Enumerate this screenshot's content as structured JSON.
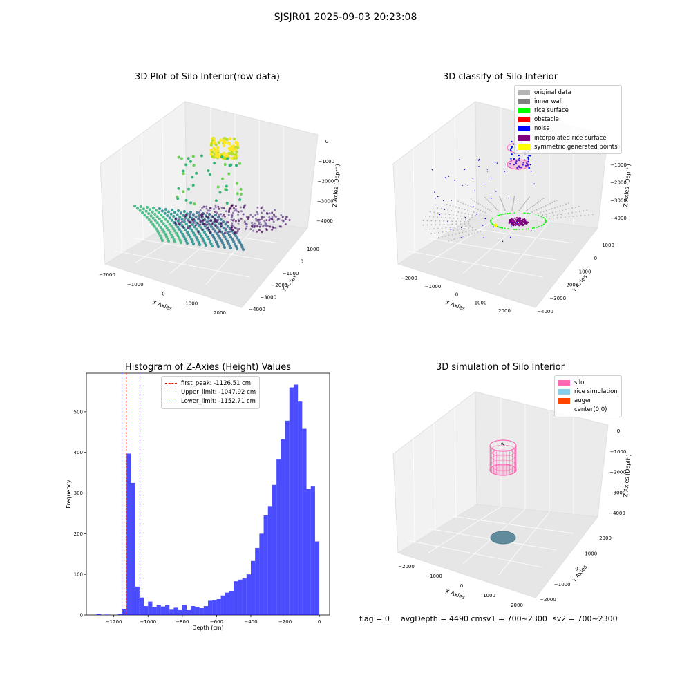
{
  "suptitle": "SJSJR01 2025-09-03 20:23:08",
  "panels": {
    "raw": {
      "title": "3D Plot of Silo Interior(row data)",
      "xlabel": "X Axies",
      "ylabel": "Y Axies",
      "zlabel": "Z Axies (Depth)",
      "xticks": [
        "−2000",
        "−1000",
        "0",
        "1000",
        "2000"
      ],
      "yticks": [
        "1000",
        "0",
        "−1000",
        "−2000",
        "−3000",
        "−4000"
      ],
      "zticks": [
        "0",
        "−1000",
        "−2000",
        "−3000",
        "−4000"
      ]
    },
    "classify": {
      "title": "3D classify of Silo Interior",
      "xlabel": "X Axies",
      "ylabel": "Y Axies",
      "zlabel": "Z Axies (Depth)",
      "xticks": [
        "−2000",
        "−1000",
        "0",
        "1000",
        "2000"
      ],
      "yticks": [
        "1000",
        "0",
        "−1000",
        "−2000",
        "−3000",
        "−4000"
      ],
      "zticks": [
        "0",
        "−1000",
        "−2000",
        "−3000",
        "−4000"
      ],
      "legend": [
        {
          "label": "original data",
          "color": "#b4b4b4"
        },
        {
          "label": "inner wall",
          "color": "#808080"
        },
        {
          "label": "rice surface",
          "color": "#00ff00"
        },
        {
          "label": "obstacle",
          "color": "#ff0000"
        },
        {
          "label": "noise",
          "color": "#0000ff"
        },
        {
          "label": "interpolated rice surface",
          "color": "#800080"
        },
        {
          "label": "symmetric generated points",
          "color": "#ffff00"
        }
      ]
    },
    "simulation": {
      "title": "3D simulation of Silo Interior",
      "xlabel": "X Axies",
      "ylabel": "Y Axies",
      "zlabel": "Z Axies (Depth)",
      "xticks": [
        "−2000",
        "−1000",
        "0",
        "1000",
        "2000"
      ],
      "yticks": [
        "2000",
        "1000",
        "0",
        "−1000",
        "−2000"
      ],
      "zticks": [
        "0",
        "−1000",
        "−2000",
        "−3000",
        "−4000"
      ],
      "legend": [
        {
          "label": "silo",
          "color": "#ff69b4"
        },
        {
          "label": "rice simulation",
          "color": "#87ceeb"
        },
        {
          "label": "auger",
          "color": "#ff4500"
        },
        {
          "label": "center(0,0)",
          "color": "#ffffff"
        }
      ]
    }
  },
  "chart_data": {
    "type": "bar",
    "title": "Histogram of Z-Axies (Height) Values",
    "xlabel": "Depth (cm)",
    "ylabel": "Frequency",
    "xlim": [
      -1360,
      60
    ],
    "ylim": [
      0,
      595
    ],
    "xticks": [
      -1200,
      -1000,
      -800,
      -600,
      -400,
      -200,
      0
    ],
    "xtick_labels": [
      "−1200",
      "−1000",
      "−800",
      "−600",
      "−400",
      "−200",
      "0"
    ],
    "yticks": [
      0,
      100,
      200,
      300,
      400,
      500
    ],
    "bar_color": "#0000ff",
    "bin_width": 25,
    "bins": [
      {
        "x": -1300,
        "v": 2
      },
      {
        "x": -1275,
        "v": 0
      },
      {
        "x": -1250,
        "v": 1
      },
      {
        "x": -1225,
        "v": 0
      },
      {
        "x": -1200,
        "v": 0
      },
      {
        "x": -1175,
        "v": 2
      },
      {
        "x": -1150,
        "v": 15
      },
      {
        "x": -1125,
        "v": 397
      },
      {
        "x": -1100,
        "v": 325
      },
      {
        "x": -1075,
        "v": 70
      },
      {
        "x": -1050,
        "v": 43
      },
      {
        "x": -1025,
        "v": 22
      },
      {
        "x": -1000,
        "v": 33
      },
      {
        "x": -975,
        "v": 20
      },
      {
        "x": -950,
        "v": 25
      },
      {
        "x": -925,
        "v": 21
      },
      {
        "x": -900,
        "v": 24
      },
      {
        "x": -875,
        "v": 13
      },
      {
        "x": -850,
        "v": 18
      },
      {
        "x": -825,
        "v": 12
      },
      {
        "x": -800,
        "v": 25
      },
      {
        "x": -775,
        "v": 12
      },
      {
        "x": -750,
        "v": 22
      },
      {
        "x": -725,
        "v": 20
      },
      {
        "x": -700,
        "v": 17
      },
      {
        "x": -675,
        "v": 22
      },
      {
        "x": -650,
        "v": 35
      },
      {
        "x": -625,
        "v": 37
      },
      {
        "x": -600,
        "v": 39
      },
      {
        "x": -575,
        "v": 48
      },
      {
        "x": -550,
        "v": 55
      },
      {
        "x": -525,
        "v": 58
      },
      {
        "x": -500,
        "v": 83
      },
      {
        "x": -475,
        "v": 87
      },
      {
        "x": -450,
        "v": 90
      },
      {
        "x": -425,
        "v": 100
      },
      {
        "x": -400,
        "v": 133
      },
      {
        "x": -375,
        "v": 165
      },
      {
        "x": -350,
        "v": 200
      },
      {
        "x": -325,
        "v": 245
      },
      {
        "x": -300,
        "v": 268
      },
      {
        "x": -275,
        "v": 320
      },
      {
        "x": -250,
        "v": 384
      },
      {
        "x": -225,
        "v": 432
      },
      {
        "x": -200,
        "v": 478
      },
      {
        "x": -175,
        "v": 560
      },
      {
        "x": -150,
        "v": 567
      },
      {
        "x": -125,
        "v": 525
      },
      {
        "x": -100,
        "v": 458
      },
      {
        "x": -75,
        "v": 310
      },
      {
        "x": -50,
        "v": 316
      },
      {
        "x": -25,
        "v": 181
      }
    ],
    "vlines": [
      {
        "label": "first_peak: -1126.51 cm",
        "x": -1126.51,
        "color": "#ff0000"
      },
      {
        "label": "Upper_limit: -1047.92 cm",
        "x": -1047.92,
        "color": "#0000aa"
      },
      {
        "label": "Lower_limit: -1152.71 cm",
        "x": -1152.71,
        "color": "#0000ff"
      }
    ]
  },
  "status": {
    "flag": "flag = 0",
    "avg_depth": "avgDepth = 4490 cmsv1 = 700~2300",
    "sv2": "sv2 = 700~2300"
  }
}
